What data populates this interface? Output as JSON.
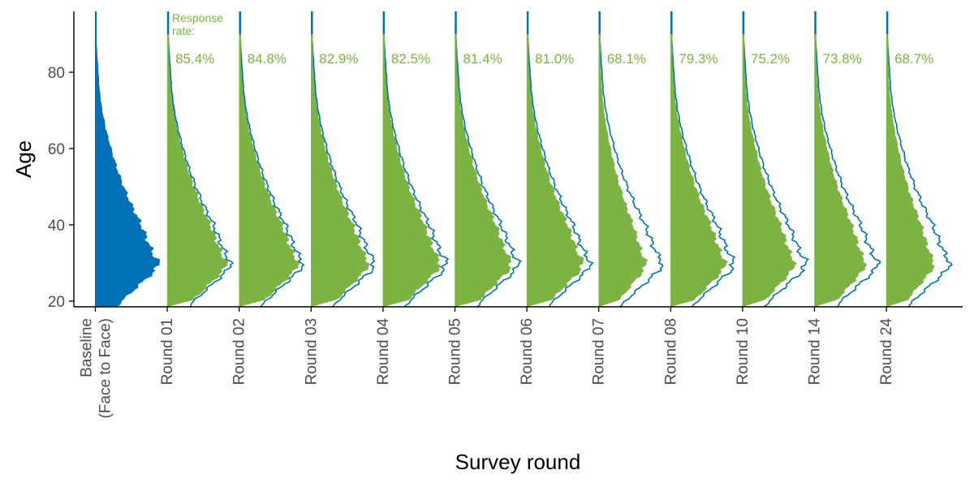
{
  "chart_data": {
    "type": "area",
    "xlabel": "Survey round",
    "ylabel": "Age",
    "ylim": [
      18.5,
      95
    ],
    "yticks": [
      20,
      40,
      60,
      80
    ],
    "annotation": [
      "Response",
      "rate:"
    ],
    "colors": {
      "baseline": "#0070B8",
      "round": "#7CB342",
      "outline": "#0070B8",
      "rate_text": "#7CB342"
    },
    "categories": [
      "Baseline\n(Face to Face)",
      "Round 01",
      "Round 02",
      "Round 03",
      "Round 04",
      "Round 05",
      "Round 06",
      "Round 07",
      "Round 08",
      "Round 10",
      "Round 14",
      "Round 24"
    ],
    "response_rates": [
      null,
      "85.4%",
      "84.8%",
      "82.9%",
      "82.5%",
      "81.4%",
      "81.0%",
      "68.1%",
      "79.3%",
      "75.2%",
      "73.8%",
      "68.7%"
    ],
    "response_rate_values": [
      null,
      85.4,
      84.8,
      82.9,
      82.5,
      81.4,
      81.0,
      68.1,
      79.3,
      75.2,
      73.8,
      68.7
    ],
    "baseline_density": {
      "ages": [
        18,
        20,
        22,
        25,
        28,
        30,
        31,
        32,
        35,
        40,
        45,
        50,
        55,
        60,
        65,
        70,
        75,
        80,
        85,
        88,
        90,
        95
      ],
      "relative_density": [
        0.32,
        0.42,
        0.55,
        0.75,
        0.95,
        1.0,
        0.98,
        0.93,
        0.85,
        0.73,
        0.58,
        0.45,
        0.34,
        0.25,
        0.17,
        0.11,
        0.07,
        0.05,
        0.03,
        0.02,
        0.01,
        0.01
      ]
    }
  }
}
